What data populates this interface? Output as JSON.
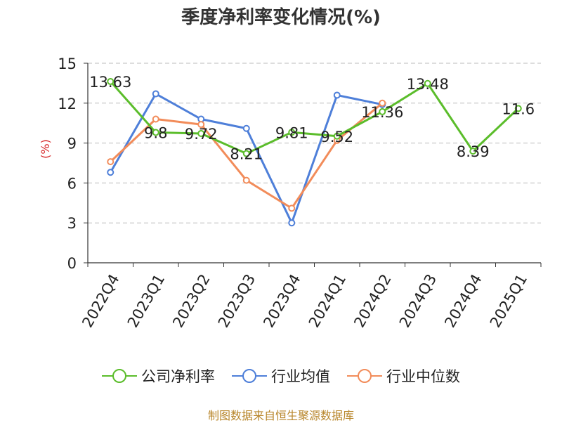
{
  "title": "季度净利率变化情况(%)",
  "source": "制图数据来自恒生聚源数据库",
  "chart_data": {
    "type": "line",
    "title": "季度净利率变化情况(%)",
    "ylabel": "(%)",
    "ylim": [
      0,
      15
    ],
    "yticks": [
      0,
      3,
      6,
      9,
      12,
      15
    ],
    "grid": true,
    "legend_position": "bottom",
    "categories": [
      "2022Q4",
      "2023Q1",
      "2023Q2",
      "2023Q3",
      "2023Q4",
      "2024Q1",
      "2024Q2",
      "2024Q3",
      "2024Q4",
      "2025Q1"
    ],
    "series": [
      {
        "name": "公司净利率",
        "color": "#5bbd2b",
        "labeled": true,
        "values": [
          13.63,
          9.8,
          9.72,
          8.21,
          9.81,
          9.52,
          11.36,
          13.48,
          8.39,
          11.6
        ]
      },
      {
        "name": "行业均值",
        "color": "#4e7fd9",
        "labeled": false,
        "values": [
          6.8,
          12.7,
          10.8,
          10.1,
          3.0,
          12.6,
          11.9,
          null,
          null,
          null
        ]
      },
      {
        "name": "行业中位数",
        "color": "#f28c5a",
        "labeled": false,
        "values": [
          7.6,
          10.8,
          10.4,
          6.2,
          4.1,
          9.2,
          12.0,
          null,
          null,
          null
        ]
      }
    ]
  }
}
